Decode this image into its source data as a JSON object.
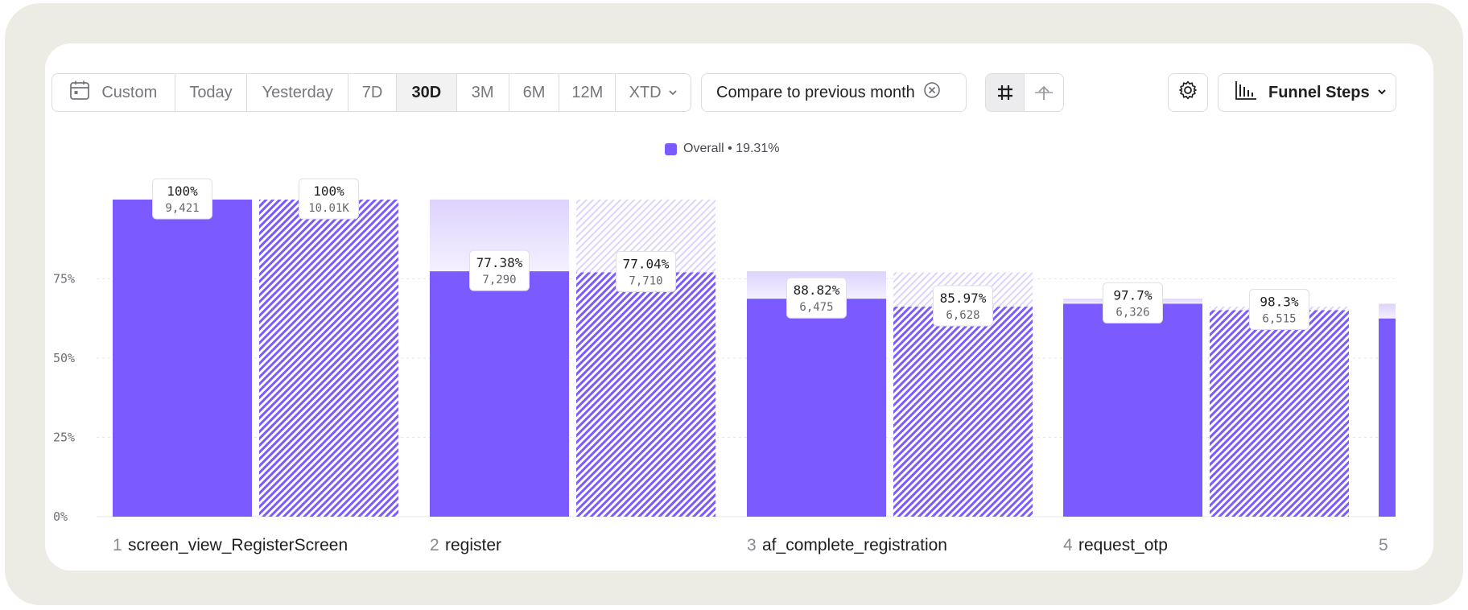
{
  "toolbar": {
    "ranges": [
      {
        "label": "Custom",
        "icon": "calendar-icon"
      },
      {
        "label": "Today"
      },
      {
        "label": "Yesterday"
      },
      {
        "label": "7D"
      },
      {
        "label": "30D",
        "active": true
      },
      {
        "label": "3M"
      },
      {
        "label": "6M"
      },
      {
        "label": "12M"
      },
      {
        "label": "XTD",
        "icon": "chevron-down-icon"
      }
    ],
    "compare_label": "Compare to previous month",
    "view_toggle_icons": [
      "hash-icon",
      "arrow-up-icon"
    ],
    "settings_icon": "gear-icon",
    "funnel_label": "Funnel Steps",
    "funnel_icon": "bar-chart-icon"
  },
  "colors": {
    "primary": "#7b5bff",
    "dropoff": "#ded5fd",
    "hatch_bg": "#ffffff"
  },
  "chart_data": {
    "type": "bar",
    "legend": {
      "label": "Overall • 19.31%",
      "placement": "top-center"
    },
    "y_ticks": [
      "0%",
      "25%",
      "50%",
      "75%"
    ],
    "ylim": [
      0,
      100
    ],
    "grid": true,
    "series": [
      {
        "name": "Overall",
        "style": "solid"
      },
      {
        "style": "hatched"
      }
    ],
    "steps": [
      {
        "num": "1",
        "name": "screen_view_RegisterScreen",
        "bars": [
          {
            "value": 100,
            "prev": 100,
            "pct_label": "100%",
            "count_label": "9,421"
          },
          {
            "value": 100,
            "prev": 100,
            "pct_label": "100%",
            "count_label": "10.01K"
          }
        ]
      },
      {
        "num": "2",
        "name": "register",
        "bars": [
          {
            "value": 77.38,
            "prev": 100,
            "pct_label": "77.38%",
            "count_label": "7,290"
          },
          {
            "value": 77.04,
            "prev": 100,
            "pct_label": "77.04%",
            "count_label": "7,710"
          }
        ]
      },
      {
        "num": "3",
        "name": "af_complete_registration",
        "bars": [
          {
            "value": 68.73,
            "prev": 77.38,
            "pct_label": "88.82%",
            "count_label": "6,475"
          },
          {
            "value": 66.23,
            "prev": 77.04,
            "pct_label": "85.97%",
            "count_label": "6,628"
          }
        ]
      },
      {
        "num": "4",
        "name": "request_otp",
        "bars": [
          {
            "value": 67.15,
            "prev": 68.73,
            "pct_label": "97.7%",
            "count_label": "6,326"
          },
          {
            "value": 65.1,
            "prev": 66.23,
            "pct_label": "98.3%",
            "count_label": "6,515"
          }
        ]
      },
      {
        "num": "5",
        "name": "",
        "bars": [
          {
            "value": 62.5,
            "prev": 67.15
          }
        ]
      }
    ]
  }
}
